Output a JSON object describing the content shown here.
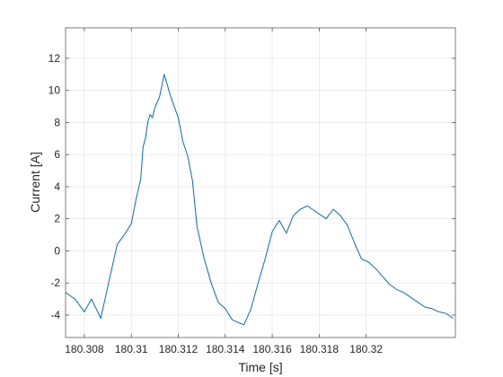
{
  "chart_data": {
    "type": "line",
    "xlabel": "Time [s]",
    "ylabel": "Current [A]",
    "xlim": [
      180.3072,
      180.3238
    ],
    "ylim": [
      -5.4,
      13.9
    ],
    "xticks": [
      180.308,
      180.31,
      180.312,
      180.314,
      180.316,
      180.318,
      180.32
    ],
    "xtick_labels": [
      "180.308",
      "180.31",
      "180.312",
      "180.314",
      "180.316",
      "180.318",
      "180.32"
    ],
    "yticks": [
      -4,
      -2,
      0,
      2,
      4,
      6,
      8,
      10,
      12
    ],
    "ytick_labels": [
      "-4",
      "-2",
      "0",
      "2",
      "4",
      "6",
      "8",
      "10",
      "12"
    ],
    "grid": true,
    "series": [
      {
        "color": "#0072bd",
        "x": [
          180.3072,
          180.3076,
          180.308,
          180.3083,
          180.3087,
          180.309,
          180.3094,
          180.3097,
          180.31,
          180.3102,
          180.3104,
          180.3105,
          180.3106,
          180.3107,
          180.3108,
          180.3109,
          180.311,
          180.3112,
          180.3114,
          180.3117,
          180.312,
          180.3122,
          180.3124,
          180.3126,
          180.3128,
          180.3131,
          180.3134,
          180.3137,
          180.314,
          180.3143,
          180.3146,
          180.3148,
          180.3151,
          180.3154,
          180.3157,
          180.316,
          180.3163,
          180.3166,
          180.3169,
          180.3172,
          180.3175,
          180.3177,
          180.318,
          180.3183,
          180.3186,
          180.3189,
          180.3192,
          180.3195,
          180.3198,
          180.3201,
          180.3204,
          180.3207,
          180.321,
          180.3213,
          180.3216,
          180.3219,
          180.3222,
          180.3225,
          180.3228,
          180.3231,
          180.3234,
          180.3237
        ],
        "y": [
          -2.6,
          -3.0,
          -3.8,
          -3.0,
          -4.2,
          -2.2,
          0.4,
          1.0,
          1.7,
          3.2,
          4.5,
          6.5,
          7.0,
          8.0,
          8.5,
          8.3,
          8.9,
          9.6,
          11.0,
          9.5,
          8.3,
          6.8,
          5.9,
          4.4,
          1.5,
          -0.5,
          -2.0,
          -3.2,
          -3.6,
          -4.3,
          -4.5,
          -4.6,
          -3.6,
          -2.0,
          -0.5,
          1.2,
          1.9,
          1.1,
          2.2,
          2.6,
          2.8,
          2.6,
          2.3,
          2.0,
          2.6,
          2.2,
          1.6,
          0.5,
          -0.5,
          -0.7,
          -1.1,
          -1.6,
          -2.1,
          -2.4,
          -2.6,
          -2.9,
          -3.2,
          -3.5,
          -3.6,
          -3.8,
          -3.9,
          -4.2
        ]
      }
    ]
  }
}
